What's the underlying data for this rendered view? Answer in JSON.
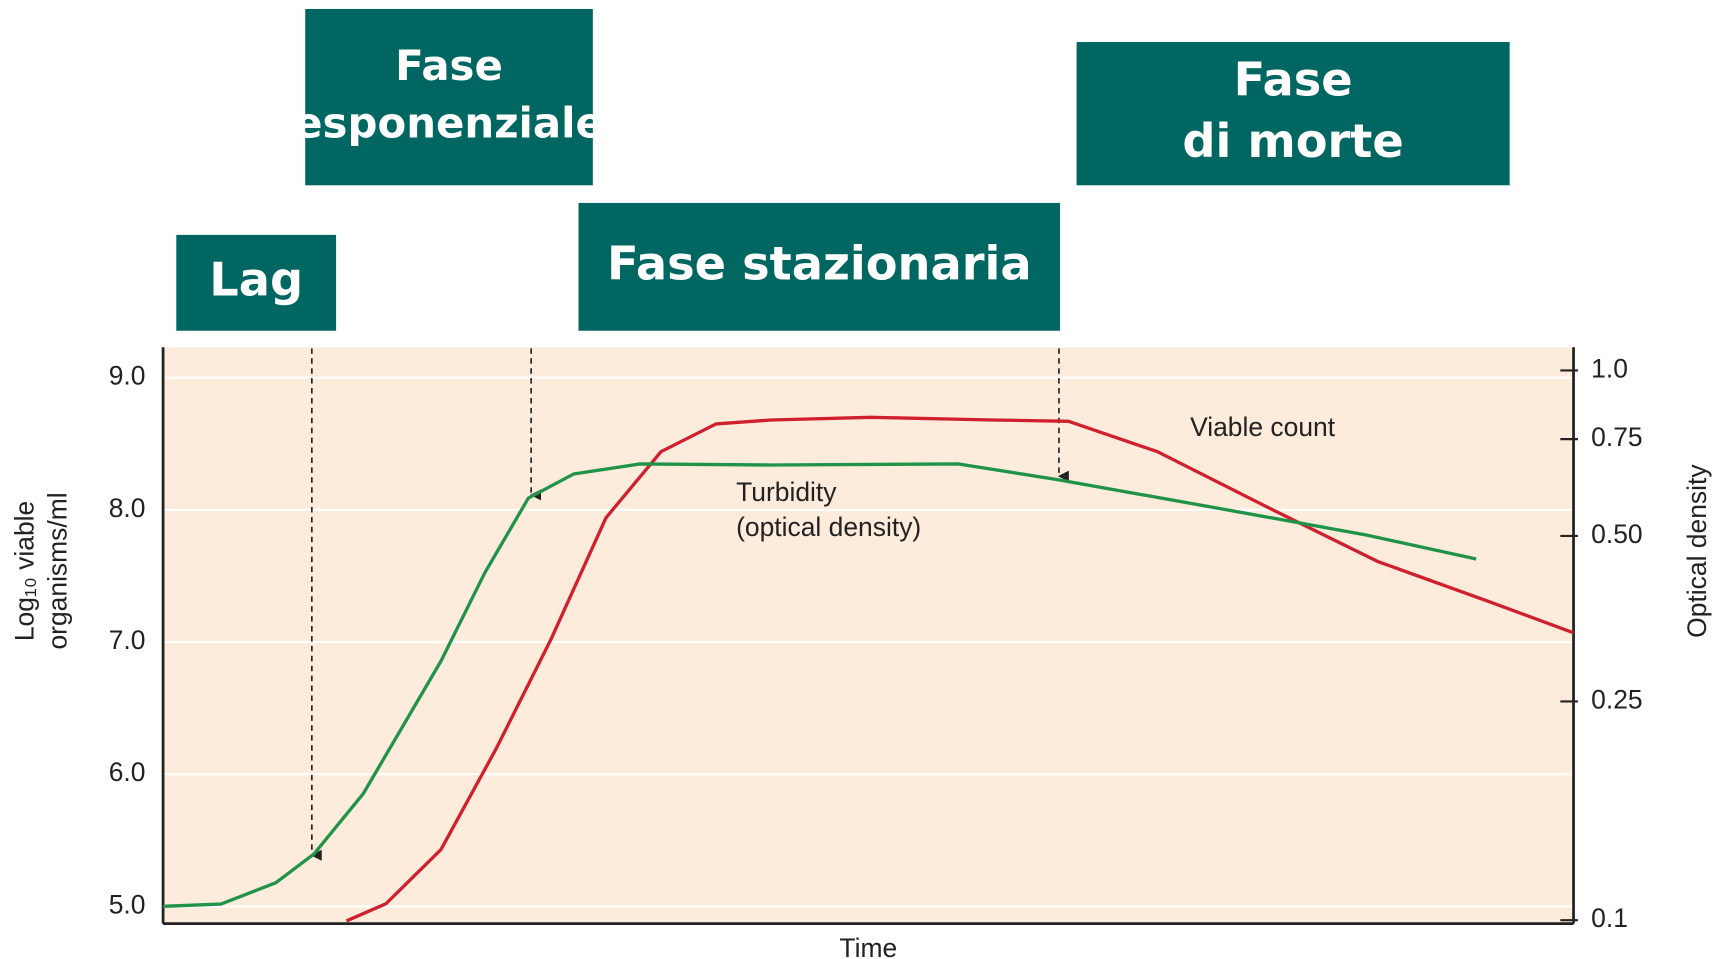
{
  "chart_data": {
    "type": "line",
    "xlabel": "Time",
    "ylabel": [
      "Log₁₀ viable",
      "organisms/ml"
    ],
    "y2label": "Optical density",
    "xlim": [
      0,
      100
    ],
    "ylim": [
      4.87,
      9.23
    ],
    "yticks": [
      {
        "value": 5,
        "label": "5.0"
      },
      {
        "value": 6,
        "label": "6.0"
      },
      {
        "value": 7,
        "label": "7.0"
      },
      {
        "value": 8,
        "label": "8.0"
      },
      {
        "value": 9,
        "label": "9.0"
      }
    ],
    "y2lim": [
      0.0986,
      1.102
    ],
    "y2scale": "log",
    "y2ticks": [
      0.1,
      0.25,
      {
        "value": 0.5,
        "label": "0.50"
      },
      0.75,
      {
        "value": 1,
        "label": "1.0"
      }
    ],
    "grid": true,
    "background": "#fdebdc",
    "series": [
      {
        "name": "Viable count",
        "color": "#d0202e",
        "axis": "y",
        "x": [
          13.0,
          15.8,
          19.7,
          23.6,
          27.5,
          31.4,
          35.3,
          39.2,
          43.1,
          50.2,
          58.8,
          64.2,
          70.5,
          78.3,
          86.1,
          93.9,
          100
        ],
        "values": [
          4.89,
          5.02,
          5.43,
          6.19,
          7.02,
          7.94,
          8.44,
          8.65,
          8.68,
          8.7,
          8.68,
          8.67,
          8.44,
          8.02,
          7.61,
          7.31,
          7.07
        ]
      },
      {
        "name": [
          "Turbidity",
          "(optical density)"
        ],
        "color": "#1f9448",
        "axis": "y2",
        "x": [
          0,
          4.1,
          8.0,
          10.7,
          14.2,
          19.7,
          22.8,
          25.9,
          29.1,
          33.8,
          43.1,
          56.4,
          63.4,
          74.4,
          85.3,
          93.1
        ],
        "values": [
          0.106,
          0.107,
          0.117,
          0.132,
          0.17,
          0.296,
          0.428,
          0.586,
          0.648,
          0.676,
          0.673,
          0.676,
          0.633,
          0.564,
          0.502,
          0.454
        ]
      }
    ],
    "phases": [
      [
        "Lag"
      ],
      [
        "Fase",
        "esponenziale"
      ],
      [
        "Fase stazionaria"
      ],
      [
        "Fase",
        "di morte"
      ]
    ]
  }
}
